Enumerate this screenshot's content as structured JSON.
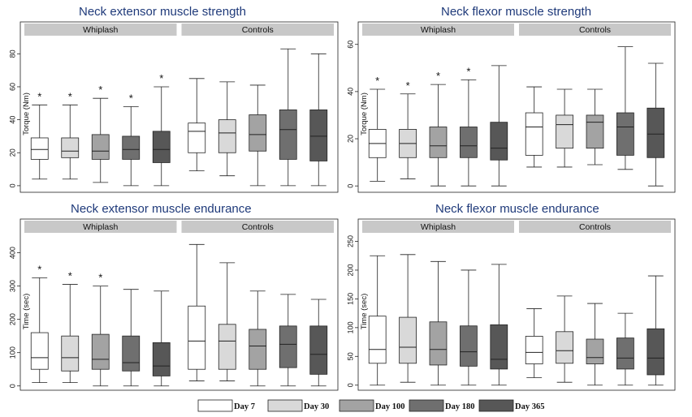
{
  "colors": {
    "day7": "#ffffff",
    "day30": "#d9d9d9",
    "day100": "#a3a3a3",
    "day180": "#6f6f6f",
    "day365": "#575757",
    "strip": "#c8c8c8",
    "title": "#1f3a7a"
  },
  "legend": [
    {
      "label": "Day 7",
      "color": "#ffffff"
    },
    {
      "label": "Day 30",
      "color": "#d9d9d9"
    },
    {
      "label": "Day 100",
      "color": "#a3a3a3"
    },
    {
      "label": "Day 180",
      "color": "#6f6f6f"
    },
    {
      "label": "Day 365",
      "color": "#575757"
    }
  ],
  "chart_data": [
    {
      "type": "boxplot",
      "title": "Neck extensor muscle strength",
      "ylabel": "Torque (Nm)",
      "ylim": [
        -3,
        90
      ],
      "yticks": [
        0,
        20,
        40,
        60,
        80
      ],
      "groups": [
        {
          "name": "Whiplash",
          "boxes": [
            {
              "series": "Day 7",
              "min": 4,
              "q1": 16,
              "median": 22,
              "q3": 29,
              "max": 49,
              "star": true
            },
            {
              "series": "Day 30",
              "min": 4,
              "q1": 17,
              "median": 21,
              "q3": 29,
              "max": 49,
              "star": true
            },
            {
              "series": "Day 100",
              "min": 2,
              "q1": 16,
              "median": 21,
              "q3": 31,
              "max": 53,
              "star": true
            },
            {
              "series": "Day 180",
              "min": 0,
              "q1": 16,
              "median": 22,
              "q3": 30,
              "max": 48,
              "star": true
            },
            {
              "series": "Day 365",
              "min": 0,
              "q1": 14,
              "median": 22,
              "q3": 33,
              "max": 60,
              "star": true
            }
          ]
        },
        {
          "name": "Controls",
          "boxes": [
            {
              "series": "Day 7",
              "min": 9,
              "q1": 20,
              "median": 33,
              "q3": 38,
              "max": 65,
              "star": false
            },
            {
              "series": "Day 30",
              "min": 6,
              "q1": 20,
              "median": 32,
              "q3": 40,
              "max": 63,
              "star": false
            },
            {
              "series": "Day 100",
              "min": 0,
              "q1": 21,
              "median": 31,
              "q3": 43,
              "max": 61,
              "star": false
            },
            {
              "series": "Day 180",
              "min": 0,
              "q1": 16,
              "median": 34,
              "q3": 46,
              "max": 83,
              "star": false
            },
            {
              "series": "Day 365",
              "min": 0,
              "q1": 15,
              "median": 30,
              "q3": 46,
              "max": 80,
              "star": false
            }
          ]
        }
      ]
    },
    {
      "type": "boxplot",
      "title": "Neck flexor muscle strength",
      "ylabel": "Torque (Nm)",
      "ylim": [
        -2,
        63
      ],
      "yticks": [
        0,
        20,
        40,
        60
      ],
      "groups": [
        {
          "name": "Whiplash",
          "boxes": [
            {
              "series": "Day 7",
              "min": 2,
              "q1": 12,
              "median": 18,
              "q3": 24,
              "max": 41,
              "star": true
            },
            {
              "series": "Day 30",
              "min": 3,
              "q1": 12,
              "median": 18,
              "q3": 24,
              "max": 39,
              "star": true
            },
            {
              "series": "Day 100",
              "min": 0,
              "q1": 12,
              "median": 17,
              "q3": 25,
              "max": 43,
              "star": true
            },
            {
              "series": "Day 180",
              "min": 0,
              "q1": 12,
              "median": 17,
              "q3": 25,
              "max": 45,
              "star": true
            },
            {
              "series": "Day 365",
              "min": 0,
              "q1": 11,
              "median": 16,
              "q3": 27,
              "max": 51,
              "star": false
            }
          ]
        },
        {
          "name": "Controls",
          "boxes": [
            {
              "series": "Day 7",
              "min": 8,
              "q1": 13,
              "median": 25,
              "q3": 31,
              "max": 42,
              "star": false
            },
            {
              "series": "Day 30",
              "min": 8,
              "q1": 16,
              "median": 26,
              "q3": 30,
              "max": 41,
              "star": false
            },
            {
              "series": "Day 100",
              "min": 9,
              "q1": 16,
              "median": 27,
              "q3": 30,
              "max": 41,
              "star": false
            },
            {
              "series": "Day 180",
              "min": 7,
              "q1": 13,
              "median": 25,
              "q3": 31,
              "max": 59,
              "star": false
            },
            {
              "series": "Day 365",
              "min": 0,
              "q1": 12,
              "median": 22,
              "q3": 33,
              "max": 52,
              "star": false
            }
          ]
        }
      ]
    },
    {
      "type": "boxplot",
      "title": "Neck extensor muscle endurance",
      "ylabel": "Time (sec)",
      "ylim": [
        -8,
        455
      ],
      "yticks": [
        0,
        100,
        200,
        300,
        400
      ],
      "groups": [
        {
          "name": "Whiplash",
          "boxes": [
            {
              "series": "Day 7",
              "min": 10,
              "q1": 50,
              "median": 85,
              "q3": 160,
              "max": 325,
              "star": true
            },
            {
              "series": "Day 30",
              "min": 10,
              "q1": 45,
              "median": 85,
              "q3": 150,
              "max": 305,
              "star": true
            },
            {
              "series": "Day 100",
              "min": 0,
              "q1": 50,
              "median": 80,
              "q3": 155,
              "max": 300,
              "star": true
            },
            {
              "series": "Day 180",
              "min": 0,
              "q1": 45,
              "median": 70,
              "q3": 150,
              "max": 290,
              "star": false
            },
            {
              "series": "Day 365",
              "min": 0,
              "q1": 30,
              "median": 60,
              "q3": 130,
              "max": 285,
              "star": false
            }
          ]
        },
        {
          "name": "Controls",
          "boxes": [
            {
              "series": "Day 7",
              "min": 15,
              "q1": 50,
              "median": 135,
              "q3": 240,
              "max": 425,
              "star": false
            },
            {
              "series": "Day 30",
              "min": 15,
              "q1": 50,
              "median": 135,
              "q3": 185,
              "max": 370,
              "star": false
            },
            {
              "series": "Day 100",
              "min": 0,
              "q1": 50,
              "median": 120,
              "q3": 170,
              "max": 285,
              "star": false
            },
            {
              "series": "Day 180",
              "min": 0,
              "q1": 55,
              "median": 125,
              "q3": 180,
              "max": 275,
              "star": false
            },
            {
              "series": "Day 365",
              "min": 0,
              "q1": 35,
              "median": 95,
              "q3": 180,
              "max": 260,
              "star": false
            }
          ]
        }
      ]
    },
    {
      "type": "boxplot",
      "title": "Neck flexor muscle endurance",
      "ylabel": "Time (sec)",
      "ylim": [
        -6,
        262
      ],
      "yticks": [
        0,
        50,
        100,
        150,
        200,
        250
      ],
      "groups": [
        {
          "name": "Whiplash",
          "boxes": [
            {
              "series": "Day 7",
              "min": 0,
              "q1": 38,
              "median": 62,
              "q3": 120,
              "max": 225,
              "star": false
            },
            {
              "series": "Day 30",
              "min": 5,
              "q1": 38,
              "median": 66,
              "q3": 118,
              "max": 227,
              "star": false
            },
            {
              "series": "Day 100",
              "min": 0,
              "q1": 35,
              "median": 62,
              "q3": 110,
              "max": 215,
              "star": false
            },
            {
              "series": "Day 180",
              "min": 0,
              "q1": 33,
              "median": 58,
              "q3": 103,
              "max": 200,
              "star": false
            },
            {
              "series": "Day 365",
              "min": 0,
              "q1": 28,
              "median": 45,
              "q3": 105,
              "max": 210,
              "star": false
            }
          ]
        },
        {
          "name": "Controls",
          "boxes": [
            {
              "series": "Day 7",
              "min": 13,
              "q1": 37,
              "median": 57,
              "q3": 85,
              "max": 133,
              "star": false
            },
            {
              "series": "Day 30",
              "min": 5,
              "q1": 38,
              "median": 60,
              "q3": 93,
              "max": 155,
              "star": false
            },
            {
              "series": "Day 100",
              "min": 0,
              "q1": 37,
              "median": 48,
              "q3": 80,
              "max": 142,
              "star": false
            },
            {
              "series": "Day 180",
              "min": 0,
              "q1": 28,
              "median": 47,
              "q3": 82,
              "max": 125,
              "star": false
            },
            {
              "series": "Day 365",
              "min": 0,
              "q1": 18,
              "median": 47,
              "q3": 98,
              "max": 190,
              "star": false
            }
          ]
        }
      ]
    }
  ]
}
